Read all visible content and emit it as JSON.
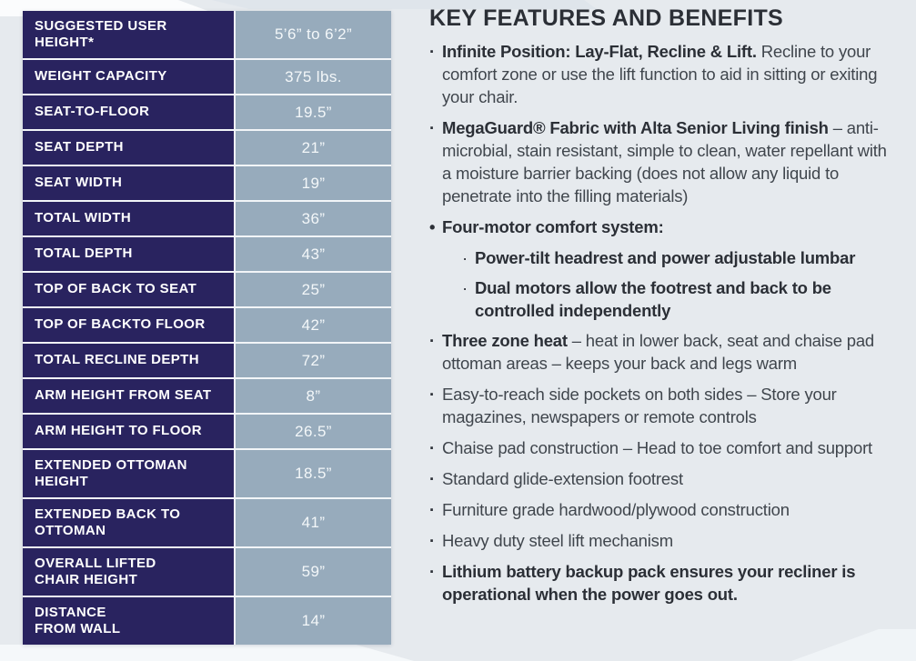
{
  "colors": {
    "navy_cell": "#29235f",
    "value_cell": "#97abbc",
    "page_background": "#e6eaee",
    "heading_text": "#2b2f36",
    "body_text": "#40464d"
  },
  "table": {
    "rows": [
      {
        "label": "SUGGESTED USER\nHEIGHT*",
        "value": "5’6” to 6’2”"
      },
      {
        "label": "WEIGHT CAPACITY",
        "value": "375 lbs."
      },
      {
        "label": "SEAT-TO-FLOOR",
        "value": "19.5”"
      },
      {
        "label": "SEAT DEPTH",
        "value": "21”"
      },
      {
        "label": "SEAT WIDTH",
        "value": "19”"
      },
      {
        "label": "TOTAL WIDTH",
        "value": "36”"
      },
      {
        "label": "TOTAL DEPTH",
        "value": "43”"
      },
      {
        "label": "TOP OF BACK TO SEAT",
        "value": "25”"
      },
      {
        "label": "TOP OF BACKTO FLOOR",
        "value": "42”"
      },
      {
        "label": "TOTAL RECLINE DEPTH",
        "value": "72”"
      },
      {
        "label": "ARM HEIGHT FROM SEAT",
        "value": "8”"
      },
      {
        "label": "ARM HEIGHT TO FLOOR",
        "value": "26.5”"
      },
      {
        "label": "EXTENDED OTTOMAN\nHEIGHT",
        "value": "18.5”"
      },
      {
        "label": "EXTENDED BACK TO\nOTTOMAN",
        "value": "41”"
      },
      {
        "label": "OVERALL LIFTED\nCHAIR HEIGHT",
        "value": "59”"
      },
      {
        "label": "DISTANCE\nFROM WALL",
        "value": "14”"
      }
    ]
  },
  "features": {
    "title": "KEY FEATURES AND BENEFITS",
    "items": [
      {
        "marker": "·",
        "bold": "Infinite Position: Lay-Flat, Recline & Lift.",
        "text": " Recline to your comfort zone or use the lift function to aid in sitting or exiting your chair."
      },
      {
        "marker": "·",
        "bold": "MegaGuard® Fabric with Alta Senior Living finish",
        "text": " – anti-microbial, stain resistant, simple to clean, water repellant with a moisture barrier backing (does not allow any liquid to penetrate into the filling materials)"
      },
      {
        "marker": "•",
        "bold": "Four-motor comfort system:",
        "text": ""
      },
      {
        "marker": "·",
        "bold": "Power-tilt headrest and power adjustable lumbar",
        "text": ""
      },
      {
        "marker": "·",
        "bold": "Dual motors allow the footrest and back to be controlled independently",
        "text": ""
      },
      {
        "marker": "·",
        "bold": "Three zone heat",
        "text": " – heat in lower back, seat and chaise pad ottoman areas – keeps your back and legs warm"
      },
      {
        "marker": "·",
        "bold": "",
        "text": "Easy-to-reach side pockets on both sides – Store your magazines, newspapers or remote controls"
      },
      {
        "marker": "·",
        "bold": "",
        "text": "Chaise pad construction – Head to toe comfort and support"
      },
      {
        "marker": "·",
        "bold": "",
        "text": "Standard glide-extension footrest"
      },
      {
        "marker": "·",
        "bold": "",
        "text": "Furniture grade hardwood/plywood construction"
      },
      {
        "marker": "·",
        "bold": "",
        "text": "Heavy duty steel lift mechanism"
      },
      {
        "marker": "·",
        "bold": "Lithium battery backup pack ensures your recliner is operational when the power goes out.",
        "text": ""
      }
    ]
  }
}
